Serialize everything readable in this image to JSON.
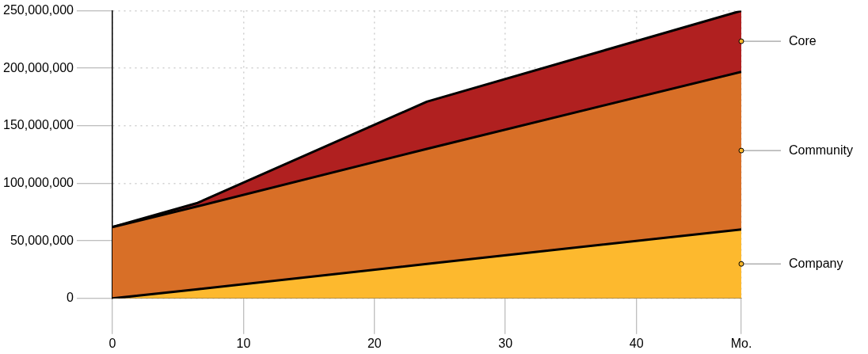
{
  "chart_data": {
    "type": "area",
    "stacked": true,
    "grid": true,
    "marker": "none",
    "line_style": "solid",
    "x": [
      0,
      6.5,
      24,
      48
    ],
    "xlim": [
      0,
      48
    ],
    "xticks": [
      0,
      10,
      20,
      30,
      40,
      {
        "value": 48,
        "label": "Mo."
      }
    ],
    "ylim": [
      0,
      250000000
    ],
    "yticks": [
      0,
      {
        "value": 50000000,
        "label": "50,000,000"
      },
      {
        "value": 100000000,
        "label": "100,000,000"
      },
      {
        "value": 150000000,
        "label": "150,000,000"
      },
      {
        "value": 200000000,
        "label": "200,000,000"
      },
      {
        "value": 250000000,
        "label": "250,000,000"
      }
    ],
    "series": [
      {
        "name": "Company",
        "color": "#fdb92e",
        "values": [
          0,
          8000000,
          30000000,
          60000000
        ]
      },
      {
        "name": "Community",
        "color": "#d86f27",
        "values": [
          62000000,
          72000000,
          100000000,
          137000000
        ]
      },
      {
        "name": "Core",
        "color": "#b02020",
        "values": [
          0,
          3000000,
          41000000,
          53000000
        ]
      }
    ]
  }
}
